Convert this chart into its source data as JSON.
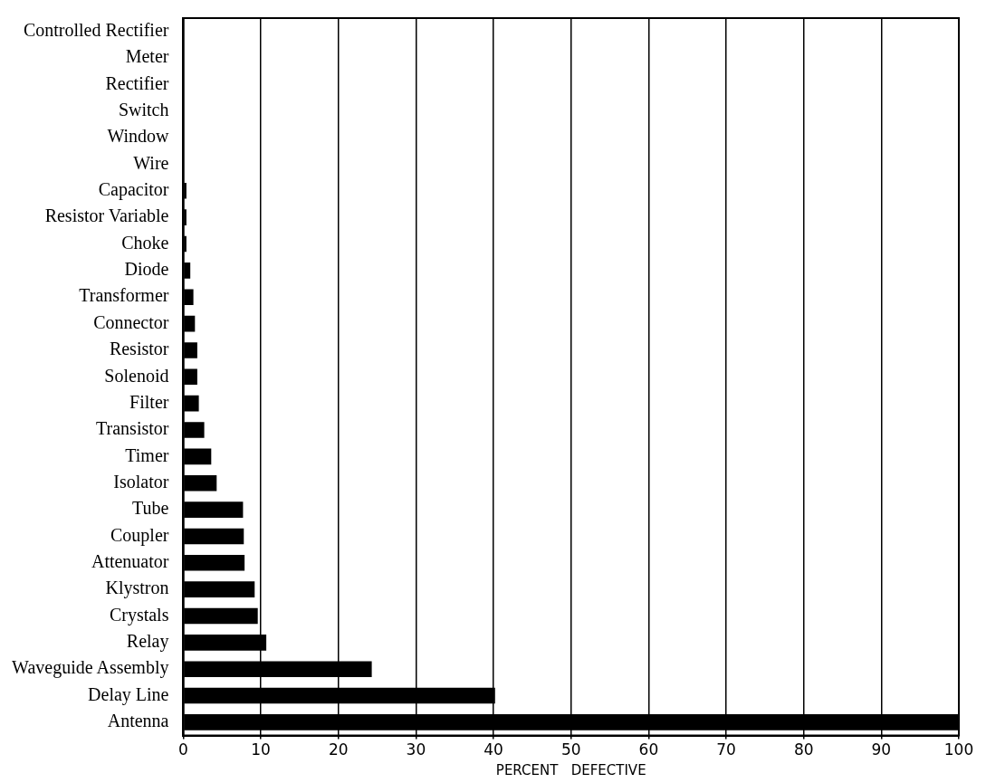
{
  "chart_data": {
    "type": "bar",
    "orientation": "horizontal",
    "xlabel": "PERCENT   DEFECTIVE",
    "categories": [
      "Controlled Rectifier",
      "Meter",
      "Rectifier",
      "Switch",
      "Window",
      "Wire",
      "Capacitor",
      "Resistor Variable",
      "Choke",
      "Diode",
      "Transformer",
      "Connector",
      "Resistor",
      "Solenoid",
      "Filter",
      "Transistor",
      "Timer",
      "Isolator",
      "Tube",
      "Coupler",
      "Attenuator",
      "Klystron",
      "Crystals",
      "Relay",
      "Waveguide Assembly",
      "Delay Line",
      "Antenna"
    ],
    "values": [
      0,
      0,
      0,
      0,
      0,
      0,
      0.4,
      0.4,
      0.4,
      0.9,
      1.3,
      1.5,
      1.8,
      1.8,
      2,
      2.7,
      3.6,
      4.3,
      7.7,
      7.8,
      7.9,
      9.2,
      9.6,
      10.7,
      24.3,
      40.2,
      100
    ],
    "color": "#000000",
    "xlim": [
      0,
      100
    ],
    "xticks": [
      0,
      10,
      20,
      30,
      40,
      50,
      60,
      70,
      80,
      90,
      100
    ],
    "grid": "x"
  }
}
